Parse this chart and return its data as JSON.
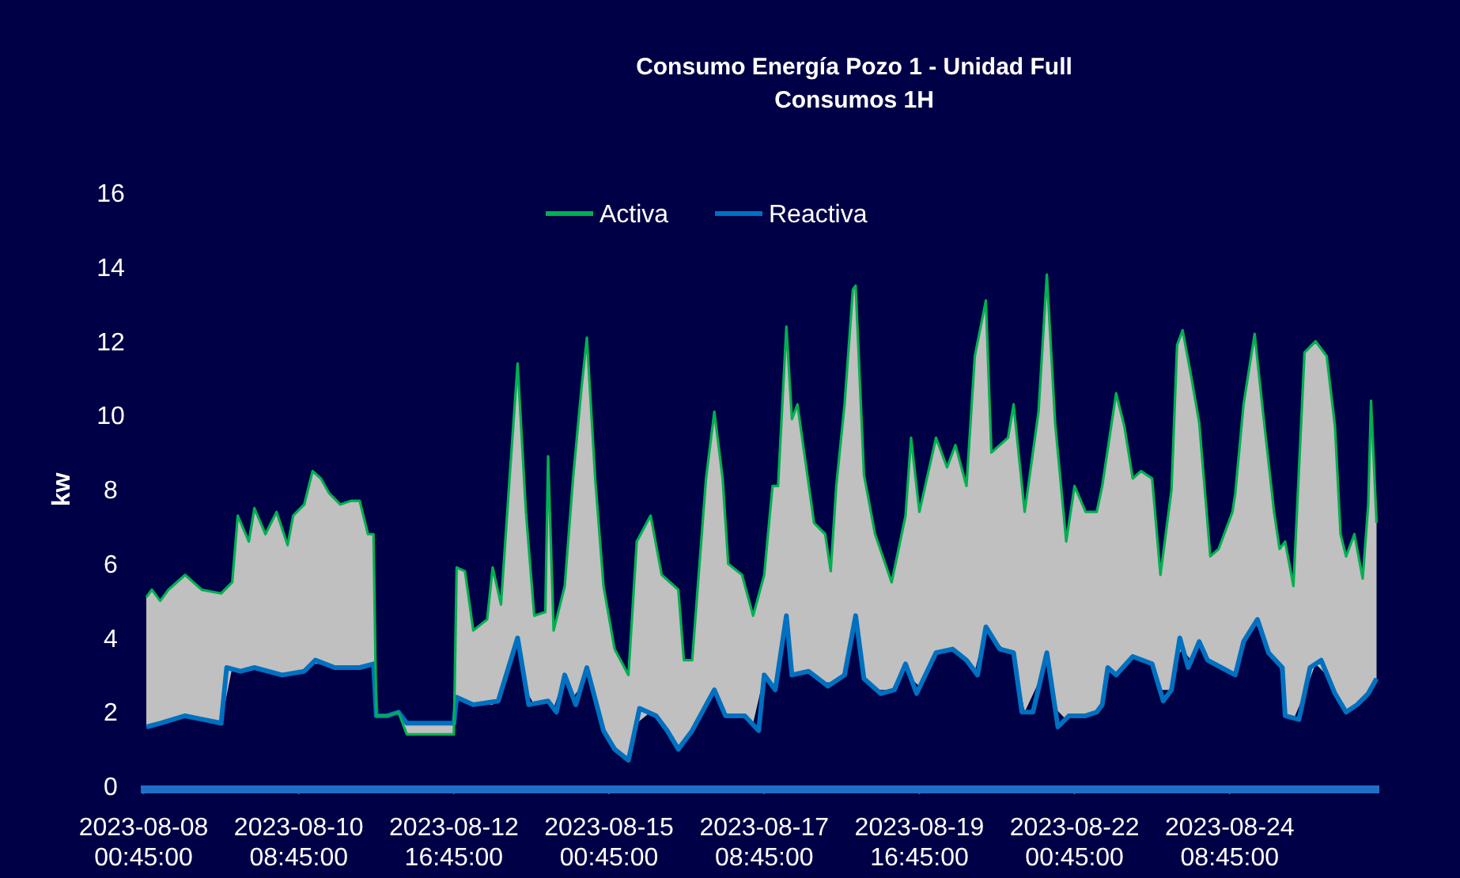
{
  "chart_data": {
    "type": "line",
    "title": "Consumo Energía Pozo 1 - Unidad Full",
    "subtitle": "Consumos 1H",
    "ylabel": "kw",
    "xlim": [
      "2023-08-07T23:45",
      "2023-08-26T14:45"
    ],
    "ylim": [
      0,
      16
    ],
    "yticks": [
      0,
      2,
      4,
      6,
      8,
      10,
      12,
      14,
      16
    ],
    "xticks": [
      {
        "value": "2023-08-08T00:45",
        "label": "2023-08-08 00:45:00"
      },
      {
        "value": "2023-08-10T08:45",
        "label": "2023-08-10 08:45:00"
      },
      {
        "value": "2023-08-12T16:45",
        "label": "2023-08-12 16:45:00"
      },
      {
        "value": "2023-08-15T00:45",
        "label": "2023-08-15 00:45:00"
      },
      {
        "value": "2023-08-17T08:45",
        "label": "2023-08-17 08:45:00"
      },
      {
        "value": "2023-08-19T16:45",
        "label": "2023-08-19 16:45:00"
      },
      {
        "value": "2023-08-22T00:45",
        "label": "2023-08-22 00:45:00"
      },
      {
        "value": "2023-08-24T08:45",
        "label": "2023-08-24 08:45:00"
      }
    ],
    "grid": false,
    "legend": "top",
    "marker": "none",
    "line_style": "solid",
    "series": [
      {
        "name": "Activa",
        "color": "#00b050",
        "x": [
          "2023-08-08T01:45",
          "2023-08-08T03:45",
          "2023-08-08T06:45",
          "2023-08-08T09:45",
          "2023-08-08T15:45",
          "2023-08-08T21:45",
          "2023-08-09T04:45",
          "2023-08-09T08:45",
          "2023-08-09T10:45",
          "2023-08-09T14:45",
          "2023-08-09T16:45",
          "2023-08-09T20:45",
          "2023-08-10T00:45",
          "2023-08-10T04:45",
          "2023-08-10T06:45",
          "2023-08-10T10:45",
          "2023-08-10T13:45",
          "2023-08-10T16:45",
          "2023-08-10T19:45",
          "2023-08-10T23:45",
          "2023-08-11T03:45",
          "2023-08-11T06:45",
          "2023-08-11T09:45",
          "2023-08-11T11:45",
          "2023-08-11T12:45",
          "2023-08-11T16:45",
          "2023-08-11T20:45",
          "2023-08-11T23:45",
          "2023-08-12T07:45",
          "2023-08-12T16:45",
          "2023-08-12T17:45",
          "2023-08-12T20:45",
          "2023-08-12T23:45",
          "2023-08-13T04:45",
          "2023-08-13T06:45",
          "2023-08-13T09:45",
          "2023-08-13T12:45",
          "2023-08-13T15:45",
          "2023-08-13T18:45",
          "2023-08-13T21:45",
          "2023-08-14T01:45",
          "2023-08-14T02:45",
          "2023-08-14T04:45",
          "2023-08-14T08:45",
          "2023-08-14T11:45",
          "2023-08-14T14:45",
          "2023-08-14T16:45",
          "2023-08-14T19:45",
          "2023-08-14T22:45",
          "2023-08-15T02:45",
          "2023-08-15T07:45",
          "2023-08-15T10:45",
          "2023-08-15T15:45",
          "2023-08-15T19:45",
          "2023-08-16T01:45",
          "2023-08-16T03:45",
          "2023-08-16T06:45",
          "2023-08-16T11:45",
          "2023-08-16T14:45",
          "2023-08-16T17:45",
          "2023-08-16T19:45",
          "2023-08-17T00:45",
          "2023-08-17T04:45",
          "2023-08-17T08:45",
          "2023-08-17T11:45",
          "2023-08-17T13:45",
          "2023-08-17T16:45",
          "2023-08-17T18:45",
          "2023-08-17T20:45",
          "2023-08-17T23:45",
          "2023-08-18T02:45",
          "2023-08-18T06:45",
          "2023-08-18T08:45",
          "2023-08-18T10:45",
          "2023-08-18T13:45",
          "2023-08-18T16:45",
          "2023-08-18T17:45",
          "2023-08-18T20:45",
          "2023-08-19T00:45",
          "2023-08-19T06:45",
          "2023-08-19T11:45",
          "2023-08-19T13:45",
          "2023-08-19T16:45",
          "2023-08-19T22:45",
          "2023-08-20T02:45",
          "2023-08-20T05:45",
          "2023-08-20T09:45",
          "2023-08-20T12:45",
          "2023-08-20T16:45",
          "2023-08-20T18:45",
          "2023-08-21T00:45",
          "2023-08-21T02:45",
          "2023-08-21T06:45",
          "2023-08-21T11:45",
          "2023-08-21T14:45",
          "2023-08-21T17:45",
          "2023-08-21T21:45",
          "2023-08-22T00:45",
          "2023-08-22T04:45",
          "2023-08-22T08:45",
          "2023-08-22T10:45",
          "2023-08-22T12:45",
          "2023-08-22T15:45",
          "2023-08-22T18:45",
          "2023-08-22T21:45",
          "2023-08-23T00:45",
          "2023-08-23T04:45",
          "2023-08-23T07:45",
          "2023-08-23T11:45",
          "2023-08-23T13:45",
          "2023-08-23T15:45",
          "2023-08-23T18:45",
          "2023-08-23T21:45",
          "2023-08-24T01:45",
          "2023-08-24T04:45",
          "2023-08-24T09:45",
          "2023-08-24T10:45",
          "2023-08-24T13:45",
          "2023-08-24T17:45",
          "2023-08-24T20:45",
          "2023-08-25T00:45",
          "2023-08-25T02:45",
          "2023-08-25T04:45",
          "2023-08-25T07:45",
          "2023-08-25T11:45",
          "2023-08-25T15:45",
          "2023-08-25T19:45",
          "2023-08-25T22:45",
          "2023-08-26T00:45",
          "2023-08-26T02:45",
          "2023-08-26T05:45",
          "2023-08-26T08:45",
          "2023-08-26T10:45",
          "2023-08-26T11:45",
          "2023-08-26T13:45"
        ],
        "values": [
          5.1,
          5.3,
          5.0,
          5.3,
          5.7,
          5.3,
          5.2,
          5.5,
          7.3,
          6.6,
          7.5,
          6.8,
          7.4,
          6.5,
          7.3,
          7.6,
          8.5,
          8.3,
          7.9,
          7.6,
          7.7,
          7.7,
          6.8,
          6.8,
          1.9,
          1.9,
          2.0,
          1.4,
          1.4,
          1.4,
          5.9,
          5.8,
          4.2,
          4.5,
          5.9,
          4.9,
          8.2,
          11.4,
          7.4,
          4.6,
          4.7,
          8.9,
          4.2,
          5.4,
          8.3,
          10.7,
          12.1,
          8.3,
          5.4,
          3.7,
          3.0,
          6.6,
          7.3,
          5.7,
          5.3,
          3.4,
          3.4,
          8.3,
          10.1,
          8.3,
          6.0,
          5.7,
          4.6,
          5.7,
          8.1,
          8.1,
          12.4,
          9.9,
          10.3,
          8.7,
          7.1,
          6.8,
          5.8,
          8.1,
          10.3,
          13.4,
          13.5,
          8.4,
          6.8,
          5.5,
          7.3,
          9.4,
          7.4,
          9.4,
          8.6,
          9.2,
          8.1,
          11.6,
          13.1,
          9.0,
          9.4,
          10.3,
          7.4,
          10.1,
          13.8,
          9.8,
          6.6,
          8.1,
          7.4,
          7.4,
          8.1,
          9.1,
          10.6,
          9.7,
          8.3,
          8.5,
          8.3,
          5.7,
          8.0,
          11.9,
          12.3,
          11.1,
          9.8,
          6.2,
          6.4,
          7.4,
          7.9,
          10.3,
          12.2,
          10.1,
          7.4,
          6.4,
          6.6,
          5.4,
          11.7,
          12.0,
          11.6,
          9.7,
          6.8,
          6.2,
          6.8,
          5.6,
          7.6,
          10.4,
          7.1
        ],
        "upper": [
          5.1,
          5.3,
          5.0,
          5.3,
          5.7,
          5.3,
          5.2,
          5.5,
          7.3,
          6.6,
          7.5,
          6.8,
          7.4,
          6.5,
          7.3,
          7.6,
          8.5,
          8.3,
          7.9,
          7.6,
          7.7,
          7.7,
          6.8,
          6.8,
          1.9,
          1.9,
          2.0,
          1.4,
          1.4,
          1.4,
          5.9,
          5.8,
          4.2,
          4.5,
          5.9,
          4.9,
          8.2,
          11.4,
          7.4,
          4.6,
          4.7,
          8.9,
          4.2,
          5.4,
          8.3,
          10.7,
          12.1,
          8.3,
          5.4,
          3.7,
          3.0,
          6.6,
          7.3,
          5.7,
          5.3,
          3.4,
          3.4,
          8.3,
          10.1,
          8.3,
          6.0,
          5.7,
          4.6,
          5.7,
          8.1,
          8.1,
          12.4,
          9.9,
          10.3,
          8.7,
          7.1,
          6.8,
          5.8,
          8.1,
          10.3,
          13.4,
          13.5,
          8.4,
          6.8,
          5.5,
          7.3,
          9.4,
          7.4,
          9.4,
          8.6,
          9.2,
          8.1,
          11.6,
          13.1,
          9.0,
          9.4,
          10.3,
          7.4,
          10.1,
          13.8,
          9.8,
          6.6,
          8.1,
          7.4,
          7.4,
          8.1,
          9.1,
          10.6,
          9.7,
          8.3,
          8.5,
          8.3,
          5.7,
          8.0,
          11.9,
          12.3,
          11.1,
          9.8,
          6.2,
          6.4,
          7.4,
          7.9,
          10.3,
          12.2,
          10.1,
          7.4,
          6.4,
          6.6,
          5.4,
          11.7,
          12.0,
          11.6,
          9.7,
          6.8,
          6.2,
          6.8,
          5.6,
          7.6,
          10.4,
          7.1
        ],
        "lower": [
          1.6,
          1.6,
          1.7,
          1.8,
          1.9,
          1.8,
          1.7,
          3.2,
          3.1,
          3.1,
          3.2,
          3.1,
          3.0,
          3.0,
          3.0,
          3.1,
          3.3,
          3.3,
          3.2,
          3.2,
          3.2,
          3.2,
          3.2,
          3.3,
          1.9,
          1.9,
          2.0,
          1.7,
          1.7,
          1.7,
          2.4,
          2.3,
          2.2,
          2.2,
          2.2,
          2.5,
          3.1,
          4.0,
          2.6,
          2.2,
          2.3,
          2.3,
          2.1,
          3.0,
          2.4,
          2.7,
          3.2,
          2.3,
          1.5,
          1.0,
          0.7,
          1.7,
          2.0,
          1.7,
          1.0,
          1.2,
          1.5,
          2.2,
          2.6,
          2.1,
          1.9,
          1.9,
          1.7,
          3.0,
          2.7,
          2.9,
          4.6,
          3.0,
          3.0,
          3.1,
          3.0,
          2.8,
          2.8,
          2.9,
          3.0,
          4.2,
          4.6,
          2.9,
          2.6,
          2.6,
          3.3,
          2.9,
          2.7,
          3.6,
          3.7,
          3.6,
          3.4,
          3.1,
          4.3,
          4.0,
          3.6,
          3.6,
          2.0,
          2.8,
          3.6,
          2.1,
          1.8,
          1.9,
          1.9,
          2.0,
          2.2,
          3.2,
          3.0,
          3.3,
          3.5,
          3.4,
          3.3,
          2.6,
          2.6,
          3.5,
          3.7,
          3.4,
          3.9,
          3.3,
          3.2,
          3.0,
          3.0,
          3.9,
          4.4,
          4.1,
          3.4,
          3.3,
          1.9,
          1.8,
          2.5,
          3.3,
          3.0,
          2.5,
          2.3,
          2.0,
          2.2,
          2.4,
          2.5,
          2.6,
          2.9
        ]
      },
      {
        "name": "Reactiva",
        "color": "#0070c0",
        "x": [
          "2023-08-08T01:45",
          "2023-08-08T06:45",
          "2023-08-08T15:45",
          "2023-08-09T04:45",
          "2023-08-09T06:45",
          "2023-08-09T11:45",
          "2023-08-09T16:45",
          "2023-08-10T02:45",
          "2023-08-10T10:45",
          "2023-08-10T14:45",
          "2023-08-10T21:45",
          "2023-08-11T06:45",
          "2023-08-11T11:45",
          "2023-08-11T12:45",
          "2023-08-11T16:45",
          "2023-08-11T20:45",
          "2023-08-11T23:45",
          "2023-08-12T07:45",
          "2023-08-12T16:45",
          "2023-08-12T17:45",
          "2023-08-12T23:45",
          "2023-08-13T08:45",
          "2023-08-13T15:45",
          "2023-08-13T19:45",
          "2023-08-14T02:45",
          "2023-08-14T05:45",
          "2023-08-14T08:45",
          "2023-08-14T12:45",
          "2023-08-14T16:45",
          "2023-08-14T22:45",
          "2023-08-15T02:45",
          "2023-08-15T07:45",
          "2023-08-15T11:45",
          "2023-08-15T17:45",
          "2023-08-15T21:45",
          "2023-08-16T01:45",
          "2023-08-16T06:45",
          "2023-08-16T14:45",
          "2023-08-16T18:45",
          "2023-08-17T01:45",
          "2023-08-17T06:45",
          "2023-08-17T08:45",
          "2023-08-17T12:45",
          "2023-08-17T16:45",
          "2023-08-17T18:45",
          "2023-08-18T00:45",
          "2023-08-18T07:45",
          "2023-08-18T13:45",
          "2023-08-18T17:45",
          "2023-08-18T20:45",
          "2023-08-19T02:45",
          "2023-08-19T07:45",
          "2023-08-19T11:45",
          "2023-08-19T15:45",
          "2023-08-19T22:45",
          "2023-08-20T04:45",
          "2023-08-20T09:45",
          "2023-08-20T13:45",
          "2023-08-20T16:45",
          "2023-08-20T21:45",
          "2023-08-21T02:45",
          "2023-08-21T05:45",
          "2023-08-21T09:45",
          "2023-08-21T14:45",
          "2023-08-21T18:45",
          "2023-08-21T22:45",
          "2023-08-22T04:45",
          "2023-08-22T08:45",
          "2023-08-22T10:45",
          "2023-08-22T12:45",
          "2023-08-22T15:45",
          "2023-08-22T21:45",
          "2023-08-23T04:45",
          "2023-08-23T08:45",
          "2023-08-23T11:45",
          "2023-08-23T14:45",
          "2023-08-23T17:45",
          "2023-08-23T21:45",
          "2023-08-24T00:45",
          "2023-08-24T05:45",
          "2023-08-24T10:45",
          "2023-08-24T13:45",
          "2023-08-24T18:45",
          "2023-08-24T22:45",
          "2023-08-25T03:45",
          "2023-08-25T04:45",
          "2023-08-25T09:45",
          "2023-08-25T13:45",
          "2023-08-25T17:45",
          "2023-08-25T22:45",
          "2023-08-26T02:45",
          "2023-08-26T06:45",
          "2023-08-26T10:45",
          "2023-08-26T13:45"
        ],
        "values": [
          1.6,
          1.7,
          1.9,
          1.7,
          3.2,
          3.1,
          3.2,
          3.0,
          3.1,
          3.4,
          3.2,
          3.2,
          3.3,
          1.9,
          1.9,
          2.0,
          1.7,
          1.7,
          1.7,
          2.4,
          2.2,
          2.3,
          4.0,
          2.2,
          2.3,
          2.0,
          3.0,
          2.2,
          3.2,
          1.5,
          1.0,
          0.7,
          2.1,
          1.9,
          1.5,
          1.0,
          1.5,
          2.6,
          1.9,
          1.9,
          1.5,
          3.0,
          2.6,
          4.6,
          3.0,
          3.1,
          2.7,
          3.0,
          4.6,
          2.9,
          2.5,
          2.6,
          3.3,
          2.5,
          3.6,
          3.7,
          3.4,
          3.0,
          4.3,
          3.7,
          3.6,
          2.0,
          2.0,
          3.6,
          1.6,
          1.9,
          1.9,
          2.0,
          2.2,
          3.2,
          3.0,
          3.5,
          3.3,
          2.3,
          2.6,
          4.0,
          3.2,
          3.9,
          3.4,
          3.2,
          3.0,
          3.9,
          4.5,
          3.6,
          3.2,
          1.9,
          1.8,
          3.2,
          3.4,
          2.5,
          2.0,
          2.2,
          2.5,
          2.9
        ]
      }
    ]
  }
}
